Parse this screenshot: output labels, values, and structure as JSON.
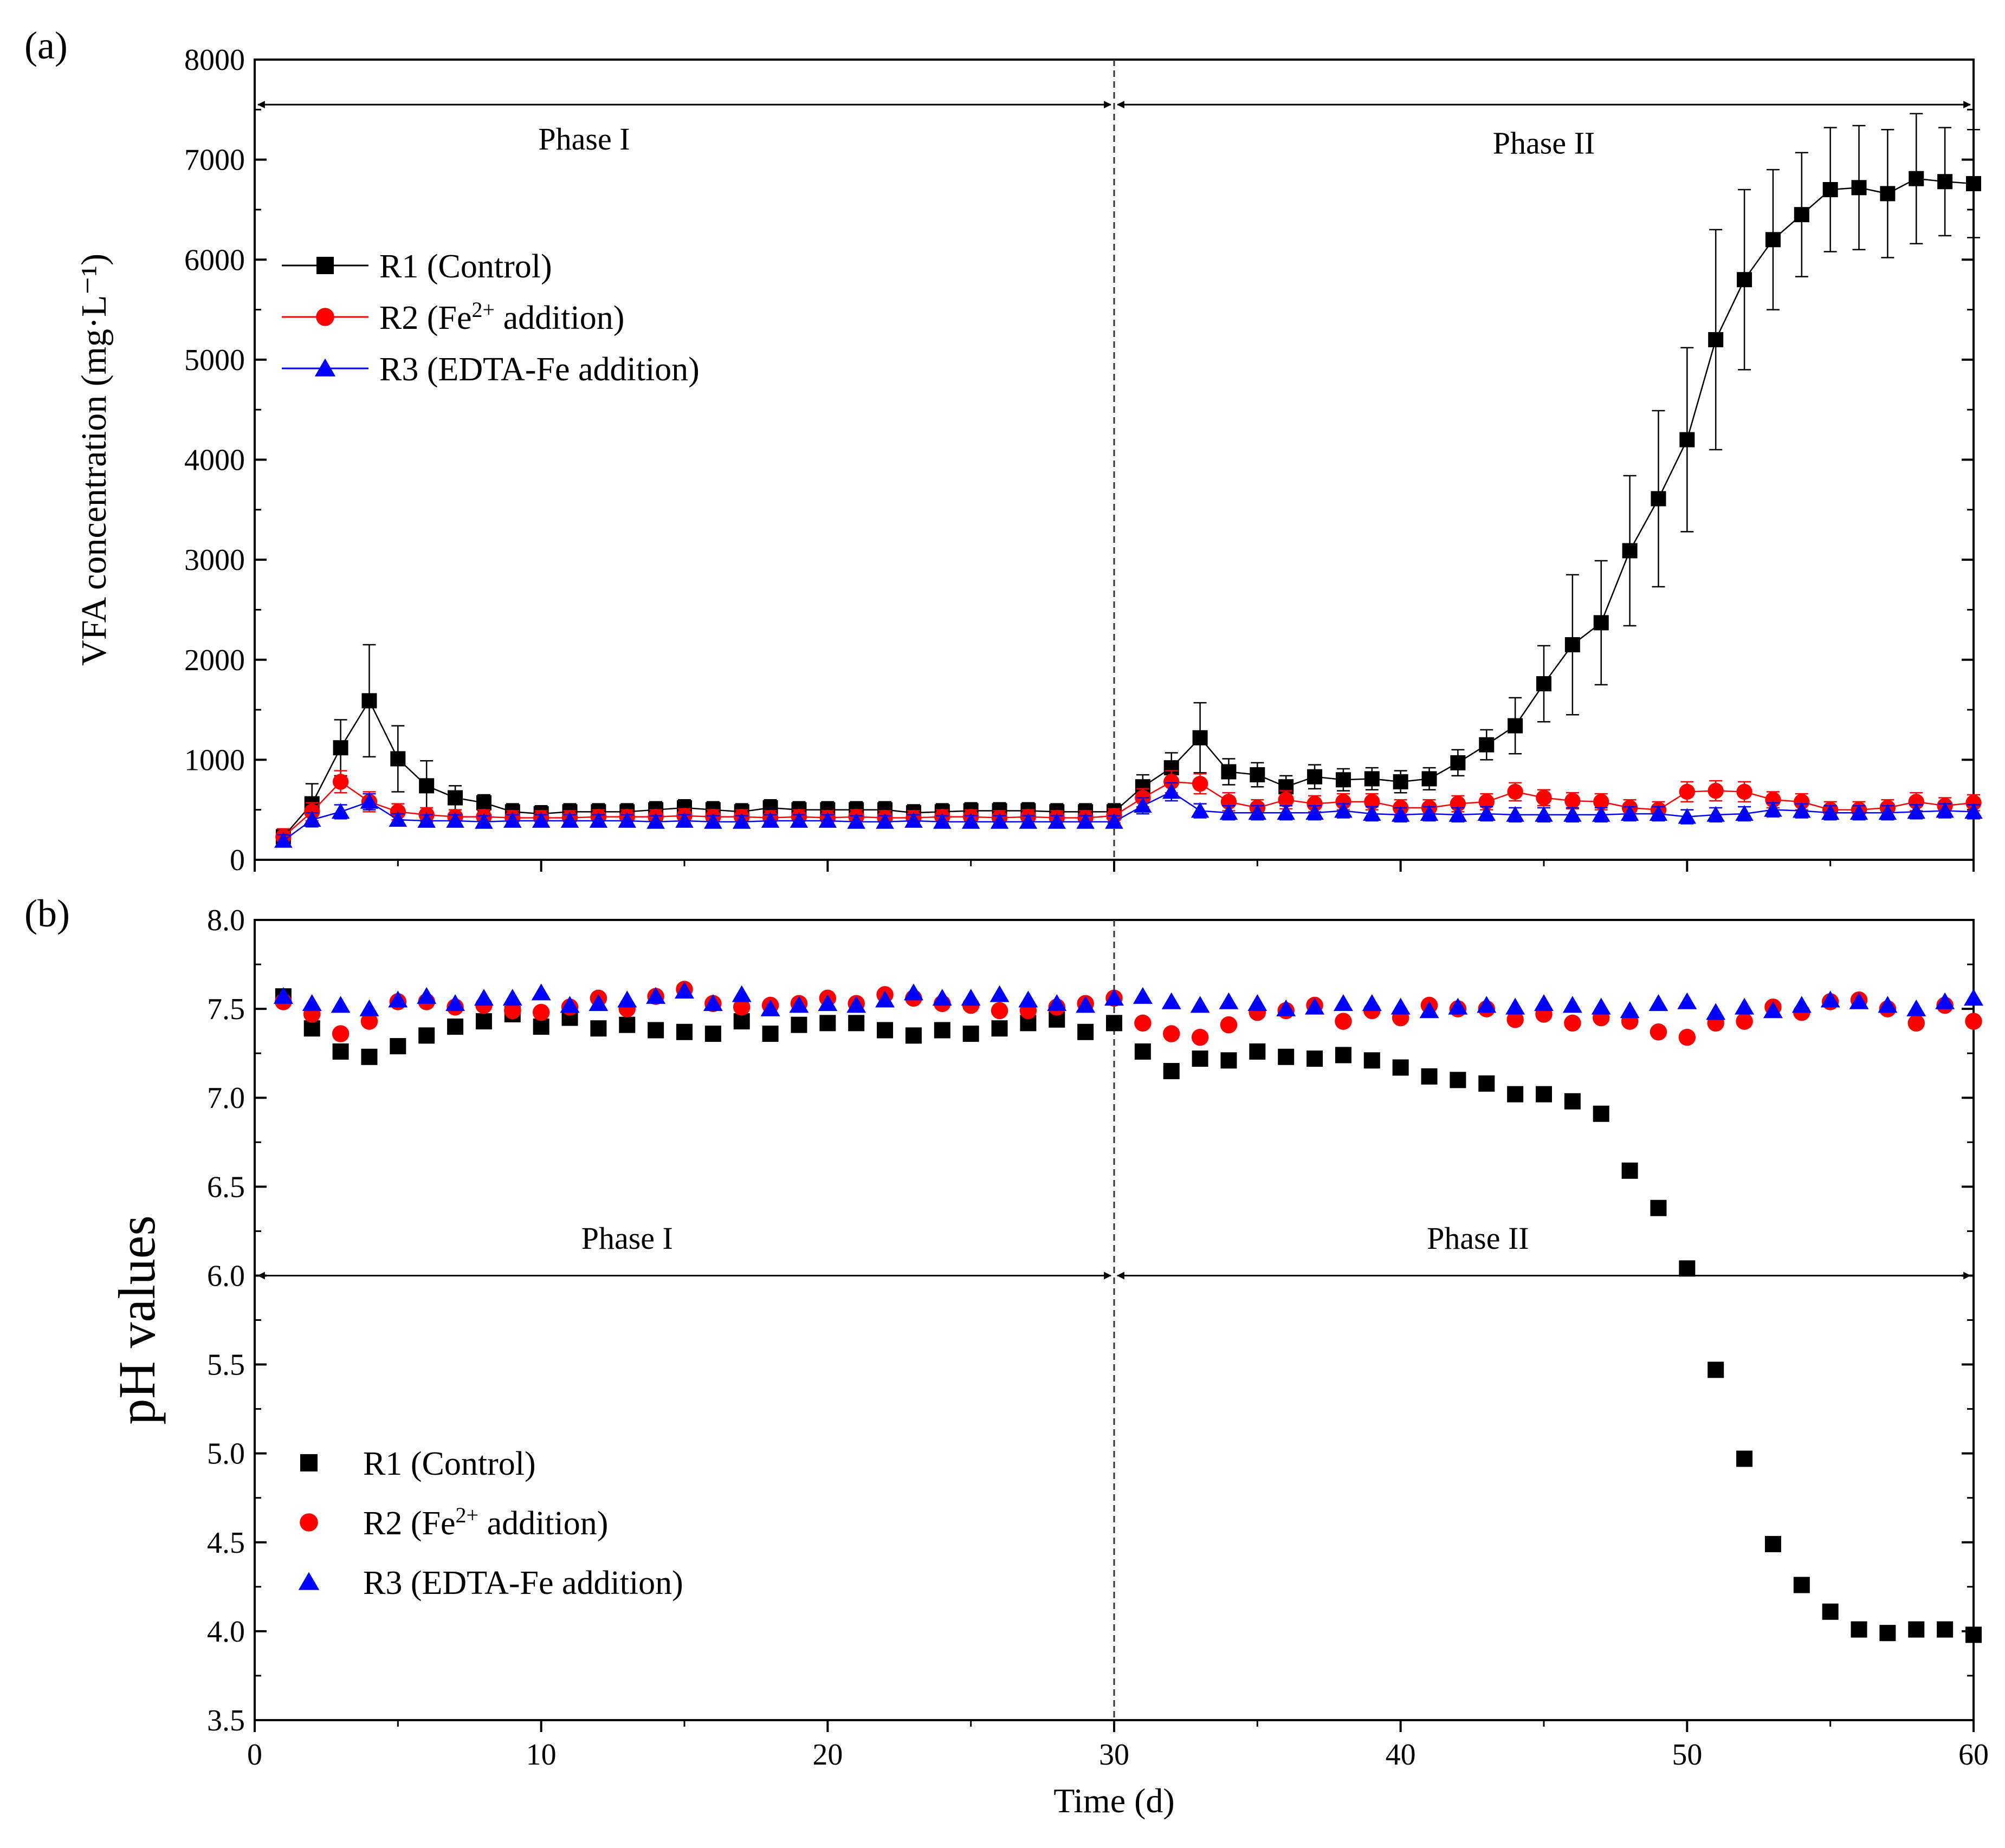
{
  "colors": {
    "r1": "#000000",
    "r2": "#ff0000",
    "r3": "#0000ff",
    "axis": "#000000",
    "guide": "#333333"
  },
  "chart_data": [
    {
      "panel": "(a)",
      "type": "line",
      "xlabel": "",
      "ylabel": "VFA  concentration (mg·L⁻¹)",
      "xlim": [
        0,
        60
      ],
      "ylim": [
        0,
        8000
      ],
      "xticks": [
        0,
        10,
        20,
        30,
        40,
        50,
        60
      ],
      "yticks": [
        0,
        1000,
        2000,
        3000,
        4000,
        5000,
        6000,
        7000,
        8000
      ],
      "show_x_tick_labels": false,
      "legend_placement": "upper-left",
      "phase_divider_x": 30,
      "phase_arrow_y": 7550,
      "phase_labels": [
        {
          "text": "Phase I",
          "x": 11.5,
          "y": 7100
        },
        {
          "text": "Phase II",
          "x": 45.0,
          "y": 7060
        }
      ],
      "series": [
        {
          "name": "R1 (Control)",
          "legend_main": "R1 (Control)",
          "legend_sup": "",
          "legend_tail": "",
          "color_key": "r1",
          "marker": "square",
          "line": true,
          "x": [
            1,
            2,
            3,
            4,
            5,
            6,
            7,
            8,
            9,
            10,
            11,
            12,
            13,
            14,
            15,
            16,
            17,
            18,
            19,
            20,
            21,
            22,
            23,
            24,
            25,
            26,
            27,
            28,
            29,
            30,
            31,
            32,
            33,
            34,
            35,
            36,
            37,
            38,
            39,
            40,
            41,
            42,
            43,
            44,
            45,
            46,
            47,
            48,
            49,
            50,
            51,
            52,
            53,
            54,
            55,
            56,
            57,
            58,
            59,
            60
          ],
          "y": [
            230,
            560,
            1120,
            1590,
            1010,
            740,
            620,
            570,
            480,
            460,
            480,
            480,
            480,
            500,
            520,
            500,
            480,
            520,
            500,
            500,
            500,
            500,
            470,
            480,
            490,
            490,
            490,
            480,
            480,
            480,
            730,
            920,
            1220,
            880,
            850,
            730,
            830,
            800,
            810,
            780,
            810,
            970,
            1150,
            1340,
            1760,
            2150,
            2370,
            3090,
            3610,
            4200,
            5200,
            5800,
            6200,
            6450,
            6700,
            6720,
            6660,
            6810,
            6780,
            6760
          ],
          "err": [
            80,
            200,
            280,
            560,
            330,
            250,
            120,
            80,
            80,
            80,
            80,
            80,
            80,
            80,
            80,
            80,
            80,
            80,
            80,
            80,
            80,
            80,
            80,
            80,
            80,
            80,
            80,
            80,
            80,
            80,
            120,
            150,
            350,
            130,
            120,
            110,
            120,
            110,
            110,
            110,
            110,
            130,
            150,
            280,
            380,
            700,
            620,
            750,
            880,
            920,
            1100,
            900,
            700,
            620,
            620,
            620,
            640,
            650,
            540,
            540
          ]
        },
        {
          "name": "R2 (Fe2+ addition)",
          "legend_main": "R2 (Fe",
          "legend_sup": "2+",
          "legend_tail": " addition)",
          "color_key": "r2",
          "marker": "circle",
          "line": true,
          "x": [
            1,
            2,
            3,
            4,
            5,
            6,
            7,
            8,
            9,
            10,
            11,
            12,
            13,
            14,
            15,
            16,
            17,
            18,
            19,
            20,
            21,
            22,
            23,
            24,
            25,
            26,
            27,
            28,
            29,
            30,
            31,
            32,
            33,
            34,
            35,
            36,
            37,
            38,
            39,
            40,
            41,
            42,
            43,
            44,
            45,
            46,
            47,
            48,
            49,
            50,
            51,
            52,
            53,
            54,
            55,
            56,
            57,
            58,
            59,
            60
          ],
          "y": [
            230,
            480,
            780,
            580,
            480,
            450,
            430,
            430,
            420,
            420,
            420,
            430,
            430,
            430,
            440,
            430,
            430,
            420,
            430,
            420,
            430,
            420,
            420,
            430,
            430,
            420,
            430,
            420,
            420,
            440,
            620,
            780,
            760,
            580,
            520,
            600,
            560,
            580,
            580,
            520,
            520,
            560,
            580,
            680,
            620,
            590,
            580,
            520,
            500,
            680,
            690,
            680,
            600,
            580,
            500,
            500,
            520,
            580,
            540,
            570
          ],
          "err": [
            80,
            90,
            110,
            100,
            80,
            70,
            70,
            70,
            70,
            70,
            70,
            70,
            70,
            70,
            70,
            70,
            70,
            70,
            70,
            70,
            70,
            70,
            70,
            70,
            70,
            70,
            70,
            70,
            70,
            70,
            90,
            110,
            100,
            90,
            80,
            90,
            80,
            80,
            80,
            80,
            80,
            80,
            80,
            90,
            80,
            80,
            80,
            80,
            80,
            100,
            100,
            100,
            80,
            80,
            80,
            80,
            80,
            90,
            80,
            80
          ]
        },
        {
          "name": "R3 (EDTA-Fe addition)",
          "legend_main": "R3 (EDTA-Fe addition)",
          "legend_sup": "",
          "legend_tail": "",
          "color_key": "r3",
          "marker": "triangle",
          "line": true,
          "x": [
            1,
            2,
            3,
            4,
            5,
            6,
            7,
            8,
            9,
            10,
            11,
            12,
            13,
            14,
            15,
            16,
            17,
            18,
            19,
            20,
            21,
            22,
            23,
            24,
            25,
            26,
            27,
            28,
            29,
            30,
            31,
            32,
            33,
            34,
            35,
            36,
            37,
            38,
            39,
            40,
            41,
            42,
            43,
            44,
            45,
            46,
            47,
            48,
            49,
            50,
            51,
            52,
            53,
            54,
            55,
            56,
            57,
            58,
            59,
            60
          ],
          "y": [
            190,
            400,
            480,
            580,
            400,
            390,
            390,
            380,
            390,
            390,
            390,
            390,
            390,
            380,
            390,
            380,
            380,
            390,
            390,
            390,
            380,
            380,
            390,
            380,
            380,
            380,
            380,
            380,
            380,
            380,
            540,
            680,
            490,
            470,
            470,
            470,
            470,
            490,
            460,
            450,
            460,
            450,
            460,
            450,
            450,
            450,
            450,
            460,
            460,
            430,
            450,
            460,
            500,
            490,
            470,
            470,
            470,
            480,
            490,
            480
          ],
          "err": [
            60,
            70,
            70,
            80,
            60,
            60,
            60,
            60,
            60,
            60,
            60,
            60,
            60,
            60,
            60,
            60,
            60,
            60,
            60,
            60,
            60,
            60,
            60,
            60,
            60,
            60,
            60,
            60,
            60,
            60,
            80,
            90,
            70,
            70,
            70,
            70,
            70,
            70,
            70,
            70,
            70,
            70,
            70,
            70,
            70,
            70,
            70,
            70,
            70,
            70,
            70,
            70,
            70,
            70,
            70,
            70,
            70,
            70,
            70,
            70
          ]
        }
      ]
    },
    {
      "panel": "(b)",
      "type": "scatter",
      "xlabel": "Time (d)",
      "ylabel": "pH values",
      "xlim": [
        0,
        60
      ],
      "ylim": [
        3.5,
        8.0
      ],
      "xticks": [
        0,
        10,
        20,
        30,
        40,
        50,
        60
      ],
      "yticks": [
        3.5,
        4.0,
        4.5,
        5.0,
        5.5,
        6.0,
        6.5,
        7.0,
        7.5,
        8.0
      ],
      "show_x_tick_labels": true,
      "legend_placement": "lower-left",
      "phase_divider_x": 30,
      "phase_arrow_y": 6.0,
      "phase_labels": [
        {
          "text": "Phase I",
          "x": 13.0,
          "y": 6.15
        },
        {
          "text": "Phase II",
          "x": 42.7,
          "y": 6.15
        }
      ],
      "series": [
        {
          "name": "R1 (Control)",
          "legend_main": "R1 (Control)",
          "legend_sup": "",
          "legend_tail": "",
          "color_key": "r1",
          "marker": "square",
          "line": false,
          "x": [
            1,
            2,
            3,
            4,
            5,
            6,
            7,
            8,
            9,
            10,
            11,
            12,
            13,
            14,
            15,
            16,
            17,
            18,
            19,
            20,
            21,
            22,
            23,
            24,
            25,
            26,
            27,
            28,
            29,
            30,
            31,
            32,
            33,
            34,
            35,
            36,
            37,
            38,
            39,
            40,
            41,
            42,
            43,
            44,
            45,
            46,
            47,
            48,
            49,
            50,
            51,
            52,
            53,
            54,
            55,
            56,
            57,
            58,
            59,
            60
          ],
          "y": [
            7.57,
            7.39,
            7.26,
            7.23,
            7.29,
            7.35,
            7.4,
            7.43,
            7.47,
            7.4,
            7.45,
            7.39,
            7.41,
            7.38,
            7.37,
            7.36,
            7.43,
            7.36,
            7.41,
            7.42,
            7.42,
            7.38,
            7.35,
            7.38,
            7.36,
            7.39,
            7.42,
            7.44,
            7.37,
            7.42,
            7.26,
            7.15,
            7.22,
            7.21,
            7.26,
            7.23,
            7.22,
            7.24,
            7.21,
            7.17,
            7.12,
            7.1,
            7.08,
            7.02,
            7.02,
            6.98,
            6.91,
            6.59,
            6.38,
            6.04,
            5.47,
            4.97,
            4.49,
            4.26,
            4.11,
            4.01,
            3.99,
            4.01,
            4.01,
            3.98
          ]
        },
        {
          "name": "R2 (Fe2+ addition)",
          "legend_main": "R2 (Fe",
          "legend_sup": "2+",
          "legend_tail": " addition)",
          "color_key": "r2",
          "marker": "circle",
          "line": false,
          "x": [
            1,
            2,
            3,
            4,
            5,
            6,
            7,
            8,
            9,
            10,
            11,
            12,
            13,
            14,
            15,
            16,
            17,
            18,
            19,
            20,
            21,
            22,
            23,
            24,
            25,
            26,
            27,
            28,
            29,
            30,
            31,
            32,
            33,
            34,
            35,
            36,
            37,
            38,
            39,
            40,
            41,
            42,
            43,
            44,
            45,
            46,
            47,
            48,
            49,
            50,
            51,
            52,
            53,
            54,
            55,
            56,
            57,
            58,
            59,
            60
          ],
          "y": [
            7.54,
            7.47,
            7.36,
            7.43,
            7.54,
            7.54,
            7.51,
            7.52,
            7.49,
            7.48,
            7.51,
            7.56,
            7.5,
            7.57,
            7.61,
            7.53,
            7.51,
            7.52,
            7.53,
            7.56,
            7.53,
            7.58,
            7.56,
            7.53,
            7.52,
            7.49,
            7.49,
            7.51,
            7.53,
            7.56,
            7.42,
            7.36,
            7.34,
            7.41,
            7.48,
            7.49,
            7.52,
            7.43,
            7.49,
            7.45,
            7.52,
            7.5,
            7.5,
            7.44,
            7.47,
            7.42,
            7.45,
            7.43,
            7.37,
            7.34,
            7.42,
            7.43,
            7.51,
            7.48,
            7.54,
            7.55,
            7.5,
            7.42,
            7.52,
            7.43
          ]
        },
        {
          "name": "R3 (EDTA-Fe addition)",
          "legend_main": "R3 (EDTA-Fe addition)",
          "legend_sup": "",
          "legend_tail": "",
          "color_key": "r3",
          "marker": "triangle",
          "line": false,
          "x": [
            1,
            2,
            3,
            4,
            5,
            6,
            7,
            8,
            9,
            10,
            11,
            12,
            13,
            14,
            15,
            16,
            17,
            18,
            19,
            20,
            21,
            22,
            23,
            24,
            25,
            26,
            27,
            28,
            29,
            30,
            31,
            32,
            33,
            34,
            35,
            36,
            37,
            38,
            39,
            40,
            41,
            42,
            43,
            44,
            45,
            46,
            47,
            48,
            49,
            50,
            51,
            52,
            53,
            54,
            55,
            56,
            57,
            58,
            59,
            60
          ],
          "y": [
            7.57,
            7.53,
            7.52,
            7.5,
            7.55,
            7.57,
            7.53,
            7.56,
            7.56,
            7.59,
            7.52,
            7.53,
            7.55,
            7.57,
            7.6,
            7.53,
            7.58,
            7.5,
            7.52,
            7.53,
            7.52,
            7.55,
            7.59,
            7.56,
            7.56,
            7.58,
            7.55,
            7.53,
            7.52,
            7.56,
            7.57,
            7.54,
            7.52,
            7.54,
            7.53,
            7.5,
            7.51,
            7.53,
            7.53,
            7.51,
            7.49,
            7.51,
            7.52,
            7.51,
            7.53,
            7.52,
            7.51,
            7.49,
            7.53,
            7.54,
            7.48,
            7.51,
            7.49,
            7.52,
            7.55,
            7.54,
            7.52,
            7.5,
            7.54,
            7.56
          ]
        }
      ]
    }
  ]
}
